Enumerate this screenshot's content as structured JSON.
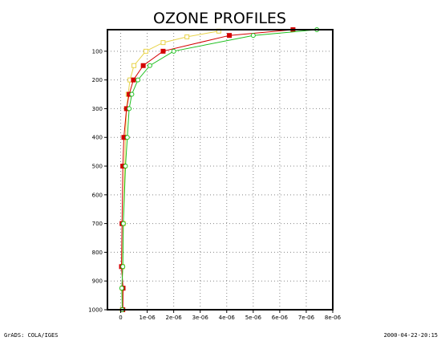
{
  "footer": {
    "left": "GrADS: COLA/IGES",
    "right": "2000-04-22-20:15"
  },
  "chart_data": {
    "type": "line",
    "title": "OZONE PROFILES",
    "xlabel": "",
    "ylabel": "",
    "xlim": [
      -5e-07,
      8e-06
    ],
    "ylim": [
      1000,
      25
    ],
    "y_reversed": true,
    "x_ticks": [
      0,
      1e-06,
      2e-06,
      3e-06,
      4e-06,
      5e-06,
      6e-06,
      7e-06,
      8e-06
    ],
    "x_tick_labels": [
      "0",
      "1e-06",
      "2e-06",
      "3e-06",
      "4e-06",
      "5e-06",
      "6e-06",
      "7e-06",
      "8e-06"
    ],
    "y_ticks": [
      100,
      200,
      300,
      400,
      500,
      600,
      700,
      800,
      900,
      1000
    ],
    "y_tick_labels": [
      "100",
      "200",
      "300",
      "400",
      "500",
      "600",
      "700",
      "800",
      "900",
      "1000"
    ],
    "grid": true,
    "series": [
      {
        "color": "#e8d34a",
        "marker": "open-square",
        "points": [
          {
            "x": 3.7e-06,
            "y": 30
          },
          {
            "x": 2.5e-06,
            "y": 50
          },
          {
            "x": 1.6e-06,
            "y": 70
          },
          {
            "x": 9.5e-07,
            "y": 100
          },
          {
            "x": 5e-07,
            "y": 150
          },
          {
            "x": 3.5e-07,
            "y": 200
          },
          {
            "x": 2.8e-07,
            "y": 250
          },
          {
            "x": 2.2e-07,
            "y": 300
          },
          {
            "x": 1.8e-07,
            "y": 400
          },
          {
            "x": 1.5e-07,
            "y": 500
          },
          {
            "x": 1e-07,
            "y": 700
          },
          {
            "x": 7e-08,
            "y": 850
          },
          {
            "x": 6e-08,
            "y": 925
          },
          {
            "x": 6e-08,
            "y": 1000
          }
        ]
      },
      {
        "color": "#d40000",
        "marker": "filled-square",
        "points": [
          {
            "x": 6.5e-06,
            "y": 25
          },
          {
            "x": 4.1e-06,
            "y": 45
          },
          {
            "x": 1.6e-06,
            "y": 100
          },
          {
            "x": 8.5e-07,
            "y": 150
          },
          {
            "x": 4.8e-07,
            "y": 200
          },
          {
            "x": 3.2e-07,
            "y": 250
          },
          {
            "x": 2.2e-07,
            "y": 300
          },
          {
            "x": 1.2e-07,
            "y": 400
          },
          {
            "x": 8e-08,
            "y": 500
          },
          {
            "x": 5e-08,
            "y": 700
          },
          {
            "x": 3e-08,
            "y": 850
          },
          {
            "x": 9e-08,
            "y": 925
          },
          {
            "x": 8e-08,
            "y": 1000
          }
        ]
      },
      {
        "color": "#20c020",
        "marker": "open-circle",
        "points": [
          {
            "x": 7.4e-06,
            "y": 25
          },
          {
            "x": 5e-06,
            "y": 45
          },
          {
            "x": 2e-06,
            "y": 100
          },
          {
            "x": 1.1e-06,
            "y": 150
          },
          {
            "x": 6.5e-07,
            "y": 200
          },
          {
            "x": 4.2e-07,
            "y": 250
          },
          {
            "x": 3.2e-07,
            "y": 300
          },
          {
            "x": 2.5e-07,
            "y": 400
          },
          {
            "x": 1.8e-07,
            "y": 500
          },
          {
            "x": 1e-07,
            "y": 700
          },
          {
            "x": 8e-08,
            "y": 850
          },
          {
            "x": 4e-08,
            "y": 925
          },
          {
            "x": 6e-08,
            "y": 1000
          }
        ]
      }
    ]
  }
}
